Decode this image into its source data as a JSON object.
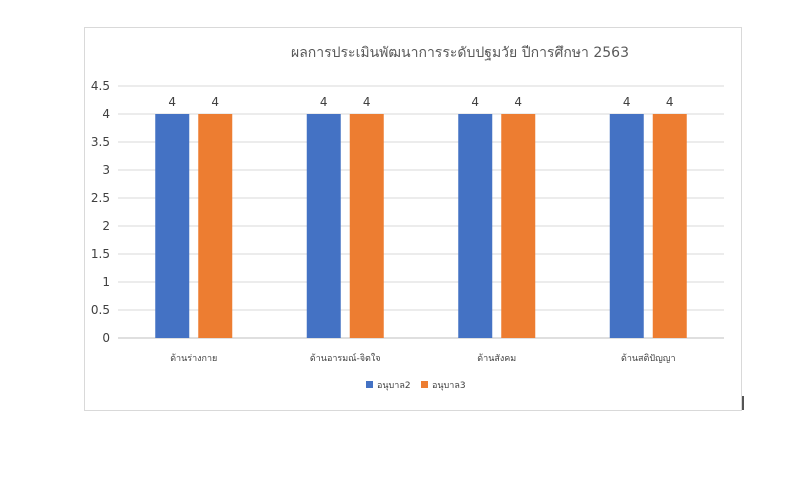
{
  "chart_data": {
    "type": "bar",
    "title": "ผลการประเมินพัฒนาการระดับปฐมวัย ปีการศึกษา 2563",
    "categories": [
      "ด้านร่างกาย",
      "ด้านอารมณ์-จิตใจ",
      "ด้านสังคม",
      "ด้านสติปัญญา"
    ],
    "series": [
      {
        "name": "อนุบาล2",
        "values": [
          4,
          4,
          4,
          4
        ],
        "color": "#4472c4"
      },
      {
        "name": "อนุบาล3",
        "values": [
          4,
          4,
          4,
          4
        ],
        "color": "#ed7d31"
      }
    ],
    "ylim": [
      0,
      4.5
    ],
    "yticks": [
      "0",
      "0.5",
      "1",
      "1.5",
      "2",
      "2.5",
      "3",
      "3.5",
      "4",
      "4.5"
    ],
    "grid": true,
    "legend": "bottom",
    "data_labels": true
  }
}
